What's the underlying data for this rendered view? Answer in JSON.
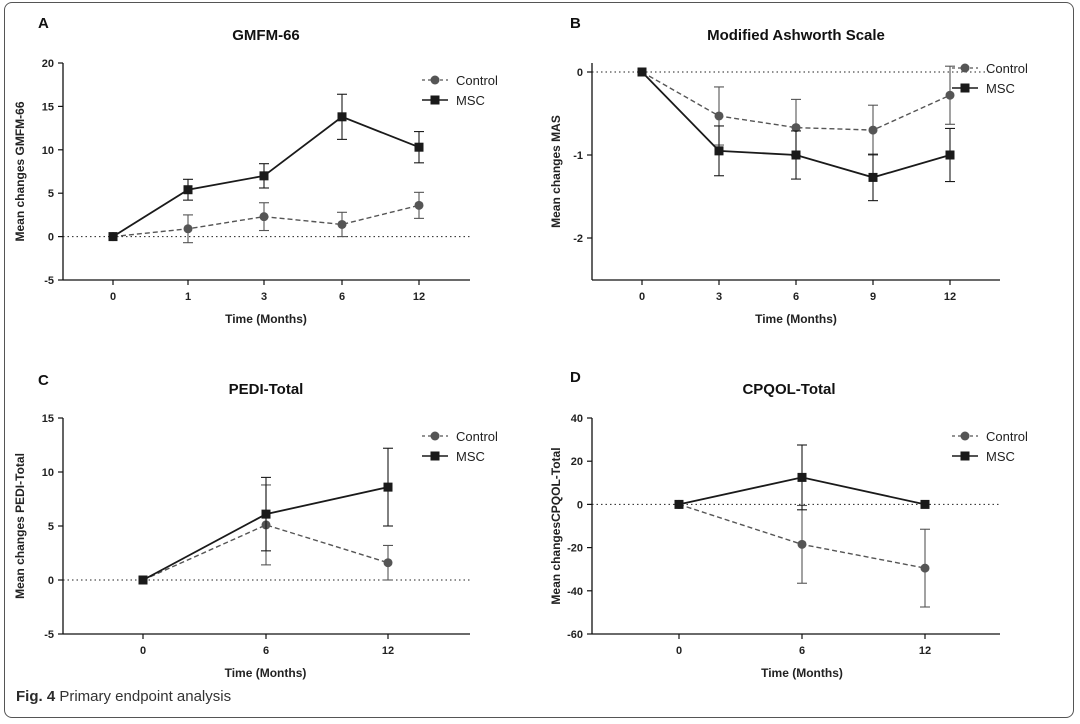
{
  "caption": {
    "label": "Fig. 4",
    "text": "Primary endpoint analysis"
  },
  "colors": {
    "control": "#555555",
    "msc": "#1a1a1a",
    "axis": "#111111"
  },
  "chart_data": [
    {
      "id": "A",
      "panel": "A",
      "type": "line",
      "title": "GMFM-66",
      "xlabel": "Time (Months)",
      "ylabel": "Mean changes GMFM-66",
      "categories": [
        "0",
        "1",
        "3",
        "6",
        "12"
      ],
      "ylim": [
        -5,
        20
      ],
      "yticks": [
        -5,
        0,
        5,
        10,
        15,
        20
      ],
      "legend": "top-right",
      "series": [
        {
          "name": "Control",
          "marker": "circle",
          "style": "dashed",
          "values": [
            0,
            0.9,
            2.3,
            1.4,
            3.6
          ],
          "errors": [
            0,
            1.6,
            1.6,
            1.4,
            1.5
          ]
        },
        {
          "name": "MSC",
          "marker": "square",
          "style": "solid",
          "values": [
            0,
            5.4,
            7.0,
            13.8,
            10.3
          ],
          "errors": [
            0,
            1.2,
            1.4,
            2.6,
            1.8
          ]
        }
      ]
    },
    {
      "id": "B",
      "panel": "B",
      "type": "line",
      "title": "Modified Ashworth Scale",
      "xlabel": "Time (Months)",
      "ylabel": "Mean changes MAS",
      "categories": [
        "0",
        "3",
        "6",
        "9",
        "12"
      ],
      "ylim": [
        -2.5,
        0.1
      ],
      "yticks": [
        0,
        -1,
        -2
      ],
      "legend": "top-right",
      "series": [
        {
          "name": "Control",
          "marker": "circle",
          "style": "dashed",
          "values": [
            0,
            -0.53,
            -0.67,
            -0.7,
            -0.28
          ],
          "errors": [
            0,
            0.35,
            0.34,
            0.3,
            0.35
          ]
        },
        {
          "name": "MSC",
          "marker": "square",
          "style": "solid",
          "values": [
            0,
            -0.95,
            -1.0,
            -1.27,
            -1.0
          ],
          "errors": [
            0,
            0.3,
            0.29,
            0.28,
            0.32
          ]
        }
      ]
    },
    {
      "id": "C",
      "panel": "C",
      "type": "line",
      "title": "PEDI-Total",
      "xlabel": "Time (Months)",
      "ylabel": "Mean changes PEDI-Total",
      "categories": [
        "0",
        "6",
        "12"
      ],
      "ylim": [
        -5,
        15
      ],
      "yticks": [
        -5,
        0,
        5,
        10,
        15
      ],
      "legend": "top-right",
      "series": [
        {
          "name": "Control",
          "marker": "circle",
          "style": "dashed",
          "values": [
            0,
            5.1,
            1.6
          ],
          "errors": [
            0,
            3.7,
            1.6
          ]
        },
        {
          "name": "MSC",
          "marker": "square",
          "style": "solid",
          "values": [
            0,
            6.1,
            8.6
          ],
          "errors": [
            0,
            3.4,
            3.6
          ]
        }
      ]
    },
    {
      "id": "D",
      "panel": "D",
      "type": "line",
      "title": "CPQOL-Total",
      "xlabel": "Time (Months)",
      "ylabel": "Mean changesCPQOL-Total",
      "categories": [
        "0",
        "6",
        "12"
      ],
      "ylim": [
        -60,
        40
      ],
      "yticks": [
        -60,
        -40,
        -20,
        0,
        20,
        40
      ],
      "legend": "top-right",
      "series": [
        {
          "name": "Control",
          "marker": "circle",
          "style": "dashed",
          "values": [
            0,
            -18.5,
            -29.5
          ],
          "errors": [
            0,
            18,
            18
          ]
        },
        {
          "name": "MSC",
          "marker": "square",
          "style": "solid",
          "values": [
            0,
            12.5,
            0
          ],
          "errors": [
            0,
            15,
            0
          ]
        }
      ]
    }
  ]
}
